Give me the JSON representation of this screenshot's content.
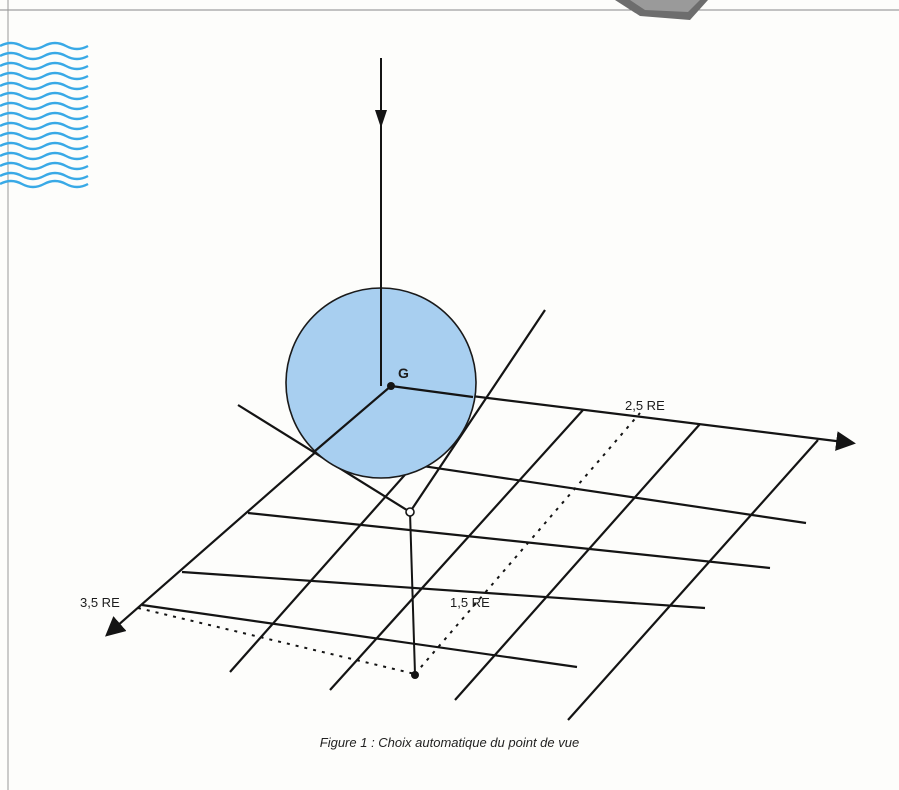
{
  "figure": {
    "caption": "Figure 1 : Choix automatique du point de vue",
    "labels": {
      "center": "G",
      "axis_x_distance": "2,5 RE",
      "axis_y_distance": "3,5 RE",
      "axis_z_distance": "1,5 RE"
    },
    "colors": {
      "sphere_fill": "#a8cff0",
      "sphere_stroke": "#1a1a1a",
      "lines": "#141414",
      "wave_decoration": "#39a9e6"
    },
    "icons": [
      "wave-decoration-icon",
      "corner-dial-icon"
    ]
  }
}
